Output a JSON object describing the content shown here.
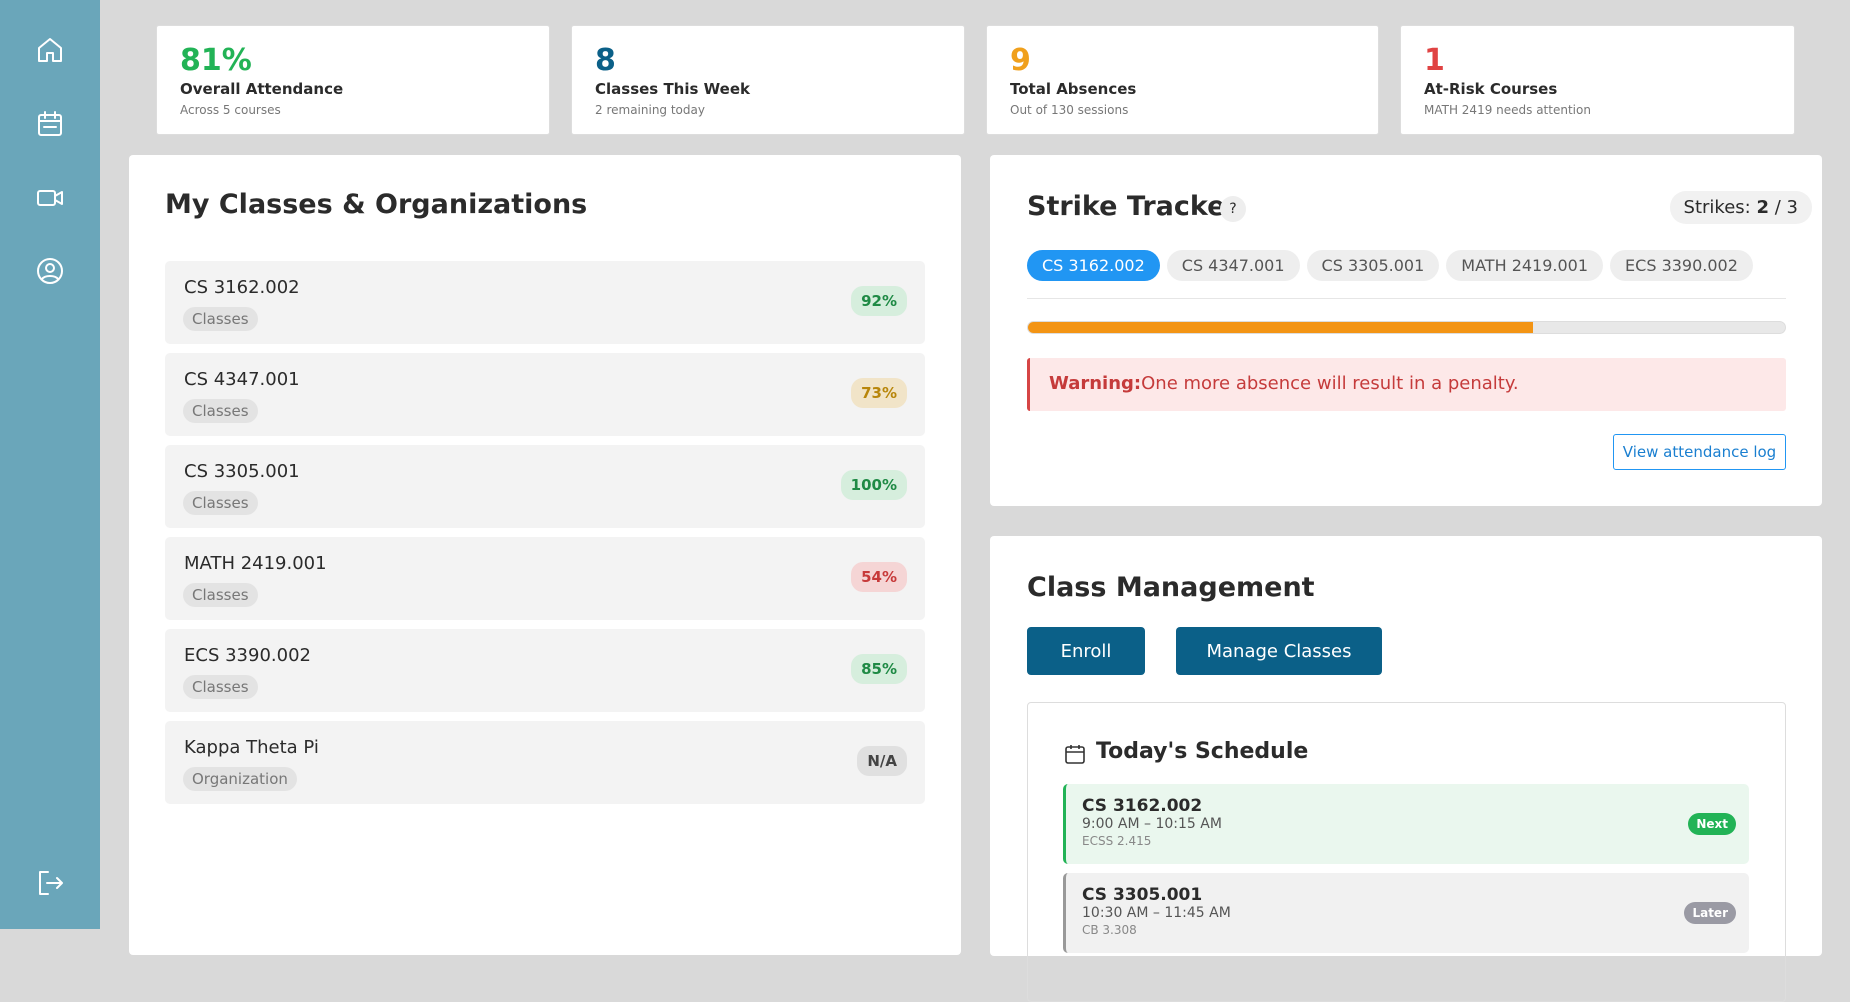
{
  "stats": [
    {
      "value": "81%",
      "label": "Overall Attendance",
      "sub": "Across 5 courses",
      "color": "#22b356"
    },
    {
      "value": "8",
      "label": "Classes This Week",
      "sub": "2 remaining today",
      "color": "#0b6088"
    },
    {
      "value": "9",
      "label": "Total Absences",
      "sub": "Out of 130 sessions",
      "color": "#f0a01c"
    },
    {
      "value": "1",
      "label": "At-Risk Courses",
      "sub": "MATH 2419 needs attention",
      "color": "#e04343"
    }
  ],
  "classes": {
    "title": "My Classes & Organizations",
    "rows": [
      {
        "name": "CS 3162.002",
        "tag": "Classes",
        "pct": "92%",
        "tone": "good"
      },
      {
        "name": "CS 4347.001",
        "tag": "Classes",
        "pct": "73%",
        "tone": "warn"
      },
      {
        "name": "CS 3305.001",
        "tag": "Classes",
        "pct": "100%",
        "tone": "good"
      },
      {
        "name": "MATH 2419.001",
        "tag": "Classes",
        "pct": "54%",
        "tone": "bad"
      },
      {
        "name": "ECS 3390.002",
        "tag": "Classes",
        "pct": "85%",
        "tone": "good"
      },
      {
        "name": "Kappa Theta Pi",
        "tag": "Organization",
        "pct": "N/A",
        "tone": "none"
      }
    ]
  },
  "strike": {
    "title": "Strike Tracker",
    "help": "?",
    "strikes": {
      "label": "Strikes:",
      "current": 2,
      "separator": "/",
      "max": 3
    },
    "tabs": [
      "CS 3162.002",
      "CS 4347.001",
      "CS 3305.001",
      "MATH 2419.001",
      "ECS 3390.002"
    ],
    "active": 0,
    "warning": {
      "label": "Warning:",
      "text": "One more absence will result in a penalty."
    },
    "button": "View attendance log"
  },
  "management": {
    "title": "Class Management",
    "buttons": [
      "Enroll",
      "Manage Classes"
    ],
    "schedule": {
      "title": "Today's Schedule",
      "items": [
        {
          "course": "CS 3162.002",
          "time": "9:00 AM – 10:15 AM",
          "room": "ECSS 2.415",
          "badge": "Next"
        },
        {
          "course": "CS 3305.001",
          "time": "10:30 AM – 11:45 AM",
          "room": "CB 3.308",
          "badge": "Later"
        }
      ]
    }
  }
}
